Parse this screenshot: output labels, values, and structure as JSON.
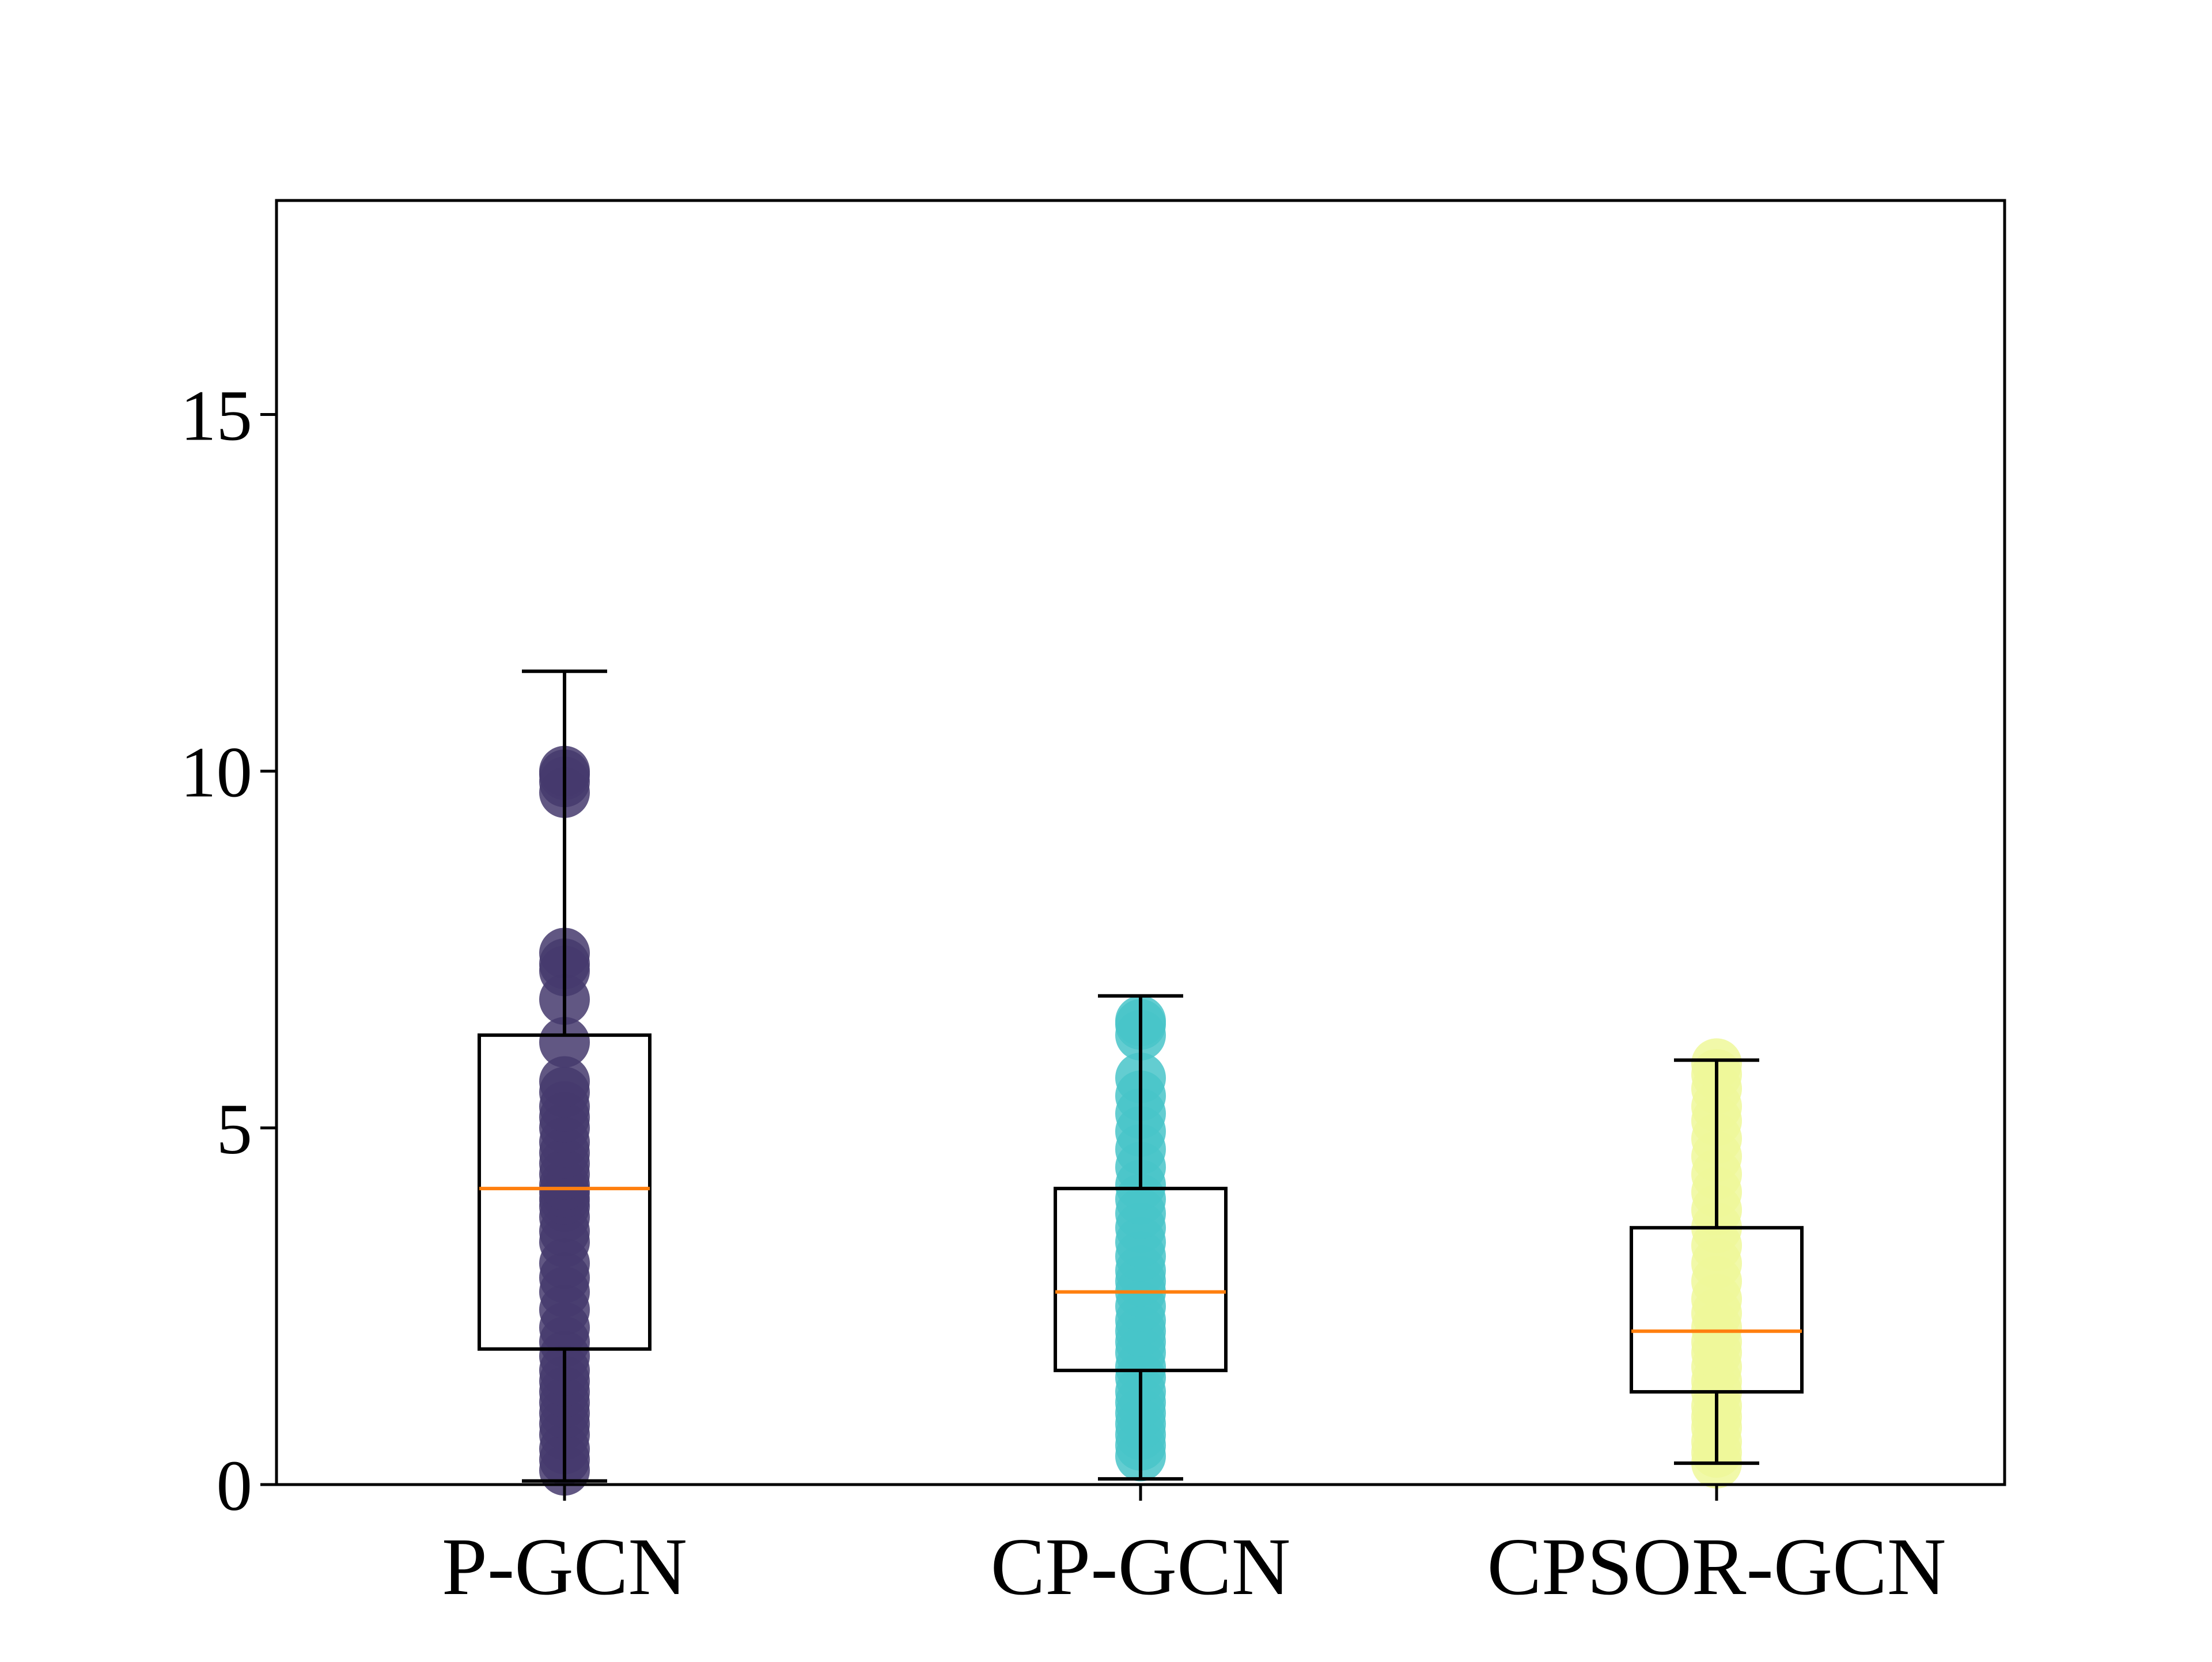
{
  "chart_data": {
    "type": "box",
    "title": "",
    "xlabel": "",
    "ylabel": "",
    "ylim": [
      0,
      18
    ],
    "yticks": [
      0,
      5,
      10,
      15
    ],
    "ytick_labels": [
      "0",
      "5",
      "10",
      "15"
    ],
    "grid": false,
    "categories": [
      "P-GCN",
      "CP-GCN",
      "CPSOR-GCN"
    ],
    "series": [
      {
        "color": "#453a6d",
        "box": {
          "whisker_low": 0.05,
          "q1": 1.9,
          "median": 4.15,
          "q3": 6.3,
          "whisker_high": 11.4
        },
        "points": [
          0.2,
          0.35,
          0.5,
          0.7,
          0.85,
          1.0,
          1.15,
          1.3,
          1.45,
          1.6,
          1.8,
          2.0,
          2.2,
          2.45,
          2.7,
          2.9,
          3.1,
          3.4,
          3.55,
          3.75,
          3.9,
          4.0,
          4.1,
          4.2,
          4.35,
          4.5,
          4.65,
          4.8,
          5.0,
          5.15,
          5.3,
          5.5,
          5.65,
          6.2,
          6.8,
          7.2,
          7.3,
          7.45,
          9.7,
          9.85,
          9.95,
          10.0
        ]
      },
      {
        "color": "#48c4c9",
        "box": {
          "whisker_low": 0.08,
          "q1": 1.6,
          "median": 2.7,
          "q3": 4.15,
          "whisker_high": 6.85
        },
        "points": [
          0.4,
          0.55,
          0.7,
          0.85,
          1.0,
          1.15,
          1.3,
          1.5,
          1.65,
          1.85,
          2.0,
          2.15,
          2.3,
          2.5,
          2.7,
          2.85,
          3.0,
          3.2,
          3.4,
          3.6,
          3.8,
          4.0,
          4.2,
          4.45,
          4.7,
          4.95,
          5.2,
          5.45,
          5.7,
          6.3,
          6.45,
          6.5
        ]
      },
      {
        "color": "#eff89a",
        "box": {
          "whisker_low": 0.3,
          "q1": 1.3,
          "median": 2.15,
          "q3": 3.6,
          "whisker_high": 5.95
        },
        "points": [
          0.3,
          0.45,
          0.6,
          0.8,
          0.95,
          1.1,
          1.3,
          1.45,
          1.65,
          1.85,
          2.0,
          2.2,
          2.4,
          2.6,
          2.85,
          3.1,
          3.35,
          3.6,
          3.85,
          4.1,
          4.35,
          4.6,
          4.85,
          5.1,
          5.3,
          5.55,
          5.75,
          5.9
        ]
      }
    ],
    "box_color": "#000000",
    "median_color": "#ff7f0e"
  }
}
